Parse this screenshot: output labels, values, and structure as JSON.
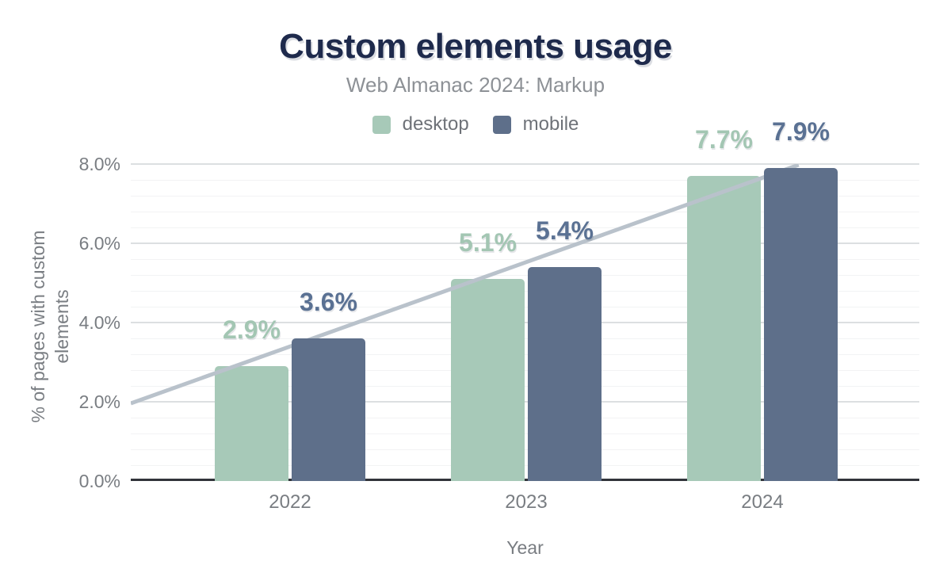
{
  "chart_data": {
    "type": "bar",
    "title": "Custom elements usage",
    "subtitle": "Web Almanac 2024: Markup",
    "categories": [
      "2022",
      "2023",
      "2024"
    ],
    "series": [
      {
        "name": "desktop",
        "values": [
          2.9,
          5.1,
          7.7
        ],
        "labels": [
          "2.9%",
          "5.1%",
          "7.7%"
        ]
      },
      {
        "name": "mobile",
        "values": [
          3.6,
          5.4,
          7.9
        ],
        "labels": [
          "3.6%",
          "5.4%",
          "7.9%"
        ]
      }
    ],
    "xlabel": "Year",
    "ylabel": "% of pages with custom elements",
    "ylim": [
      0,
      8
    ],
    "yticks": [
      {
        "value": 0,
        "label": "0.0%"
      },
      {
        "value": 2,
        "label": "2.0%"
      },
      {
        "value": 4,
        "label": "4.0%"
      },
      {
        "value": 6,
        "label": "6.0%"
      },
      {
        "value": 8,
        "label": "8.0%"
      }
    ],
    "minor_grid_step_pct": 0.4,
    "grid": true,
    "legend_position": "top",
    "trendline": {
      "description": "linear trend line drawn above desktop bars and behind mobile bars",
      "start": {
        "x_frac": 0.0,
        "value": 1.96
      },
      "end": {
        "x_frac": 0.847,
        "value": 7.98
      }
    }
  },
  "colors": {
    "title": "#1e2a4c",
    "subtitle": "#8d9196",
    "axis_text": "#797d82",
    "legend_text": "#6e7278",
    "desktop": "#a7c9b8",
    "mobile": "#5e6f8a",
    "desktop_label": "#a3c6b3",
    "mobile_label": "#5a7193",
    "trendline": "#b9c2cb",
    "grid_major": "#dcdfe1",
    "grid_minor": "#f2f3f4",
    "axis_line": "#32343a"
  }
}
